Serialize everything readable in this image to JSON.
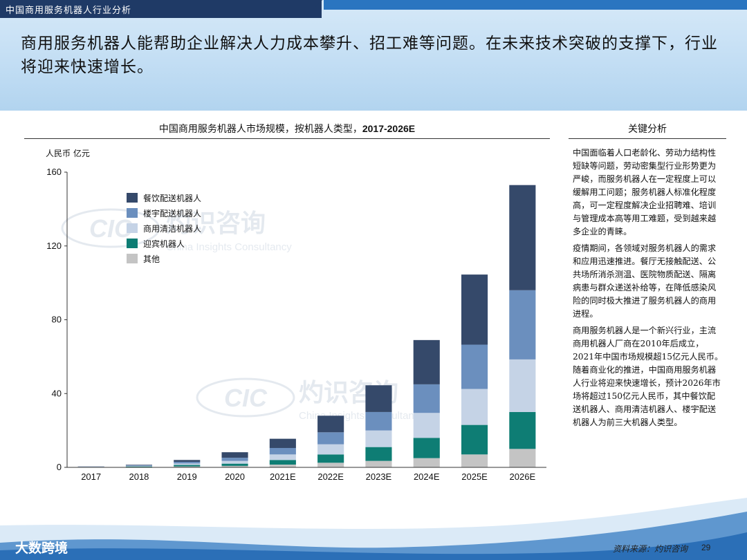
{
  "header": {
    "title": "中国商用服务机器人行业分析"
  },
  "headline": "商用服务机器人能帮助企业解决人力成本攀升、招工难等问题。在未来技术突破的支撑下，行业将迎来快速增长。",
  "chart_title_prefix": "中国商用服务机器人市场规模，按机器人类型，",
  "chart_title_years": "2017-2026E",
  "side_panel": {
    "title": "关键分析",
    "paragraphs": [
      "中国面临着人口老龄化、劳动力结构性短缺等问题，劳动密集型行业形势更为严峻，而服务机器人在一定程度上可以缓解用工问题；服务机器人标准化程度高，可一定程度解决企业招聘难、培训与管理成本高等用工难题，受到越来越多企业的青睐。",
      "疫情期间，各领域对服务机器人的需求和应用迅速推进。餐厅无接触配送、公共场所消杀测温、医院物质配送、隔离病患与群众递送补给等，在降低感染风险的同时极大推进了服务机器人的商用进程。",
      "商用服务机器人是一个新兴行业，主流商用机器人厂商在2010年后成立，2021年中国市场规模超15亿元人民币。随着商业化的推进，中国商用服务机器人行业将迎来快速增长，预计2026年市场将超过150亿元人民币，其中餐饮配送机器人、商用清洁机器人、楼宇配送机器人为前三大机器人类型。"
    ]
  },
  "watermark": {
    "brand": "灼识咨询",
    "english": "China Insights Consultancy",
    "mark": "CIC"
  },
  "footer": {
    "source": "资料来源：灼识咨询",
    "page": "29",
    "logo": "大数跨境"
  },
  "chart_data": {
    "type": "bar",
    "stacked": true,
    "ylabel": "人民币 亿元",
    "ylim": [
      0,
      160
    ],
    "yticks": [
      0,
      40,
      80,
      120,
      160
    ],
    "grid": false,
    "legend_position": "top-left",
    "categories": [
      "2017",
      "2018",
      "2019",
      "2020",
      "2021E",
      "2022E",
      "2023E",
      "2024E",
      "2025E",
      "2026E"
    ],
    "series": [
      {
        "name": "其他",
        "color": "#c4c4c4",
        "values": [
          0.1,
          0.2,
          0.5,
          0.8,
          1.5,
          2.5,
          3.5,
          5.0,
          7.0,
          10.0
        ]
      },
      {
        "name": "迎宾机器人",
        "color": "#0e7d74",
        "values": [
          0.1,
          0.3,
          0.8,
          1.2,
          2.5,
          4.5,
          7.5,
          11.0,
          16.0,
          20.0
        ]
      },
      {
        "name": "商用清洁机器人",
        "color": "#c5d3e6",
        "values": [
          0.1,
          0.3,
          0.8,
          1.5,
          3.0,
          5.5,
          9.0,
          13.5,
          19.5,
          28.5
        ]
      },
      {
        "name": "楼宇配送机器人",
        "color": "#6b8fbe",
        "values": [
          0.1,
          0.3,
          0.9,
          1.7,
          3.5,
          6.5,
          10.0,
          15.5,
          24.0,
          37.5
        ]
      },
      {
        "name": "餐饮配送机器人",
        "color": "#35496a",
        "values": [
          0.1,
          0.3,
          1.0,
          3.0,
          5.0,
          9.0,
          14.5,
          24.0,
          38.0,
          57.0
        ]
      }
    ],
    "legend_order": [
      "餐饮配送机器人",
      "楼宇配送机器人",
      "商用清洁机器人",
      "迎宾机器人",
      "其他"
    ]
  }
}
